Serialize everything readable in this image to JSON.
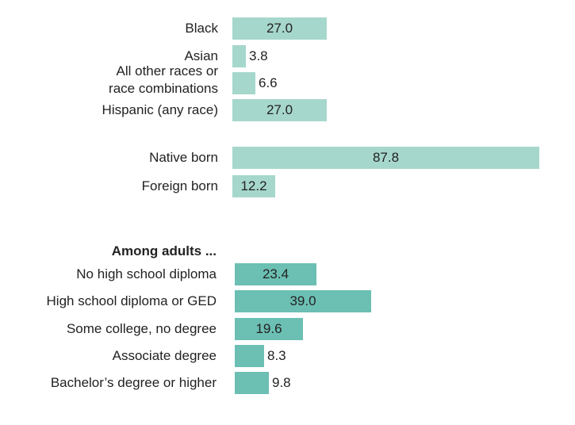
{
  "colors": {
    "light": "#a6d7cc",
    "dark": "#6cbfb3"
  },
  "chart_data": [
    {
      "type": "bar",
      "orientation": "horizontal",
      "categories": [
        "Black",
        "Asian",
        "All other races or race combinations",
        "Hispanic (any race)",
        "Native born",
        "Foreign born"
      ],
      "category_lines": [
        [
          "Black"
        ],
        [
          "Asian"
        ],
        [
          "All other races or",
          "race combinations"
        ],
        [
          "Hispanic (any race)"
        ],
        [
          "Native born"
        ],
        [
          "Foreign born"
        ]
      ],
      "values": [
        27.0,
        3.8,
        6.6,
        27.0,
        87.8,
        12.2
      ],
      "value_labels": [
        "27.0",
        "3.8",
        "6.6",
        "27.0",
        "87.8",
        "12.2"
      ],
      "xlim": [
        0,
        87.8
      ]
    },
    {
      "type": "bar",
      "orientation": "horizontal",
      "heading": "Among adults ...",
      "categories": [
        "No high school diploma",
        "High school diploma or GED",
        "Some college, no degree",
        "Associate degree",
        "Bachelor’s degree or higher"
      ],
      "values": [
        23.4,
        39.0,
        19.6,
        8.3,
        9.8
      ],
      "value_labels": [
        "23.4",
        "39.0",
        "19.6",
        "8.3",
        "9.8"
      ],
      "xlim": [
        0,
        87.8
      ]
    }
  ]
}
